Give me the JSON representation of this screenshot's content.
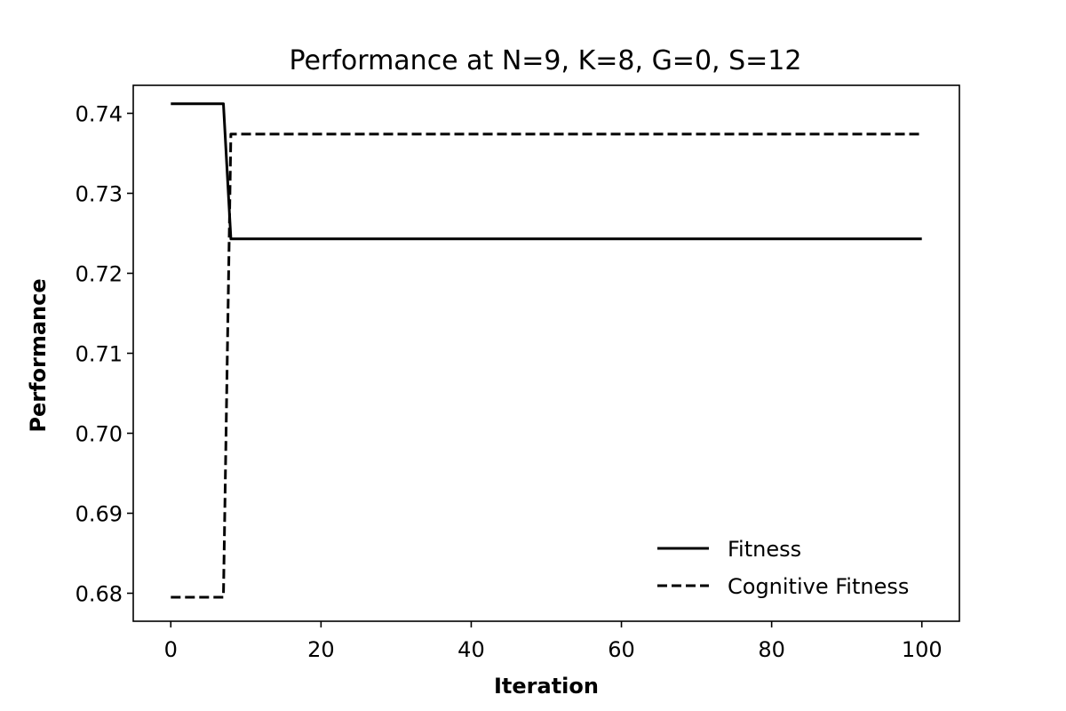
{
  "chart_data": {
    "type": "line",
    "title": "Performance at N=9, K=8, G=0, S=12",
    "xlabel": "Iteration",
    "ylabel": "Performance",
    "xlim": [
      -5,
      105
    ],
    "ylim": [
      0.6765,
      0.7435
    ],
    "xticks": [
      0,
      20,
      40,
      60,
      80,
      100
    ],
    "yticks": [
      0.68,
      0.69,
      0.7,
      0.71,
      0.72,
      0.73,
      0.74
    ],
    "ytick_labels": [
      "0.68",
      "0.69",
      "0.70",
      "0.71",
      "0.72",
      "0.73",
      "0.74"
    ],
    "grid": false,
    "legend": "lower-right",
    "series": [
      {
        "name": "Fitness",
        "style": "solid",
        "color": "#000000",
        "x": [
          0,
          7,
          8,
          100
        ],
        "y": [
          0.7412,
          0.7412,
          0.7243,
          0.7243
        ]
      },
      {
        "name": "Cognitive Fitness",
        "style": "dashed",
        "color": "#000000",
        "x": [
          0,
          7,
          8,
          100
        ],
        "y": [
          0.6795,
          0.6795,
          0.7374,
          0.7374
        ]
      }
    ]
  }
}
